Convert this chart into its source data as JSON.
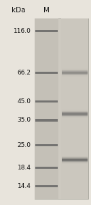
{
  "background_color": "#e8e4dc",
  "title_kda": "kDa",
  "title_m": "M",
  "marker_mw": [
    116.0,
    66.2,
    45.0,
    35.0,
    25.0,
    18.4,
    14.4
  ],
  "sample_bands_kda": [
    66.2,
    38.0,
    20.5
  ],
  "sample_band_intensities": [
    0.5,
    0.65,
    0.75
  ],
  "marker_band_color": "#606060",
  "marker_band_alpha": 0.8,
  "sample_band_color": "#505050",
  "label_fontsize": 6.5,
  "header_fontsize": 7.5,
  "label_color": "#111111",
  "fig_width": 1.34,
  "fig_height": 3.0,
  "dpi": 100,
  "gel_color": "#cdc9c0",
  "marker_lane_color": "#c4c0b7",
  "sample_lane_color": "#cbc7be"
}
